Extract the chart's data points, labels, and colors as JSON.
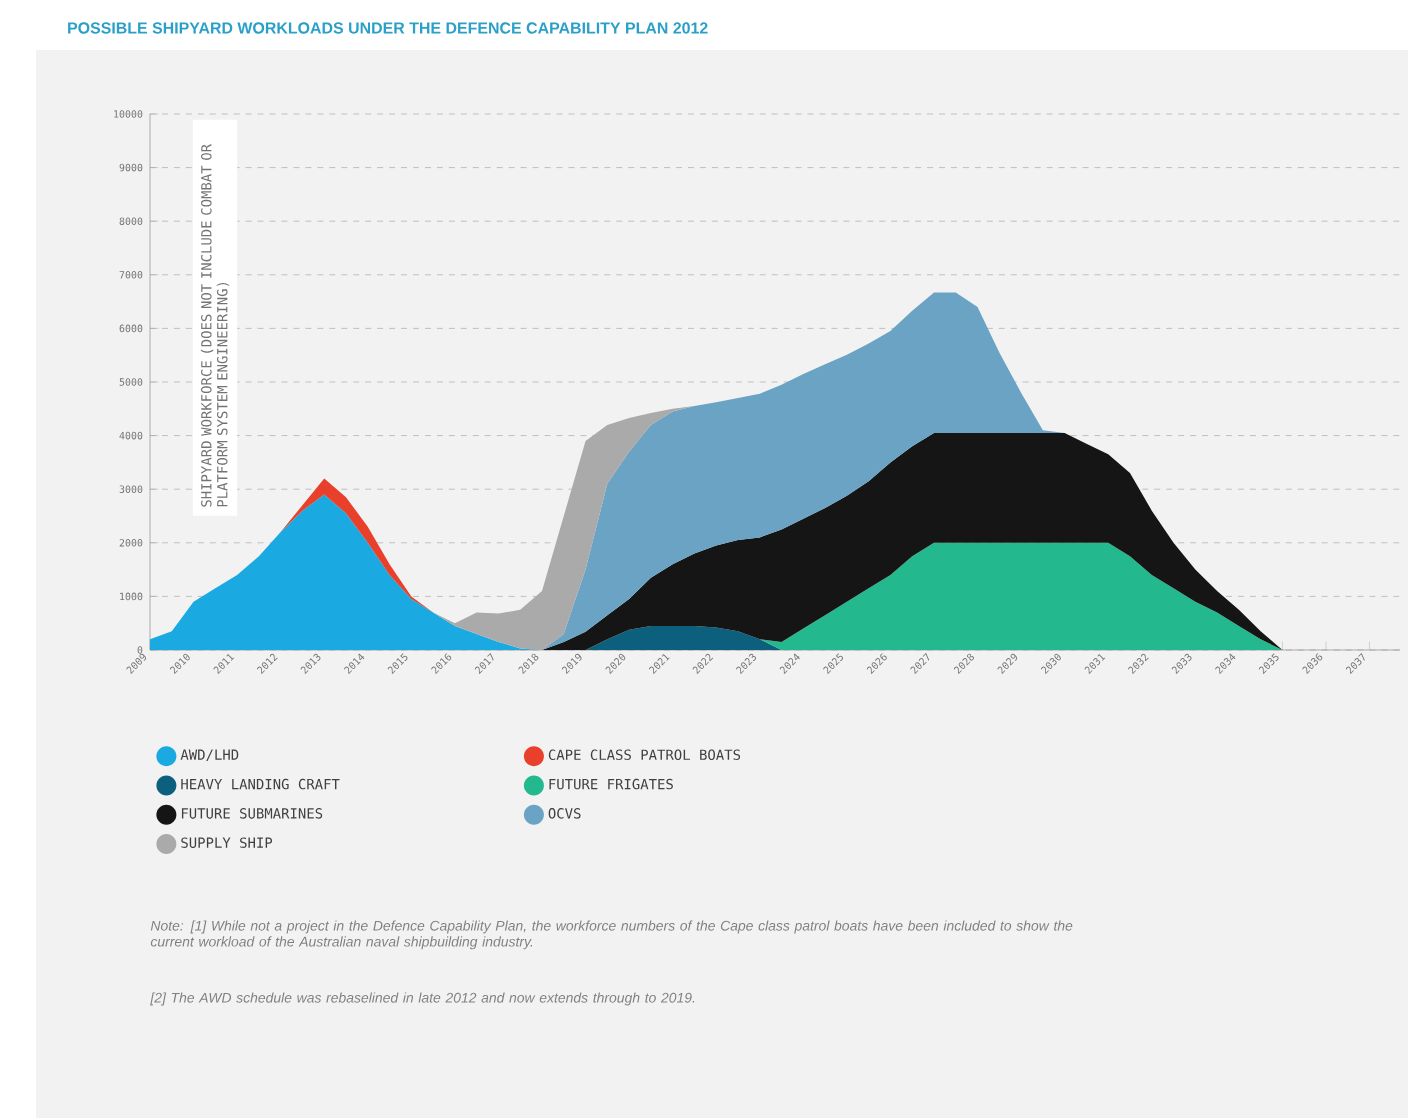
{
  "chart_data": {
    "type": "area",
    "stacked": true,
    "title": "POSSIBLE SHIPYARD WORKLOADS UNDER THE DEFENCE CAPABILITY PLAN 2012",
    "ylabel": "SHIPYARD WORKFORCE (DOES NOT INCLUDE COMBAT OR PLATFORM SYSTEM ENGINEERING)",
    "x": [
      2009,
      2009.5,
      2010,
      2010.5,
      2011,
      2011.5,
      2012,
      2012.5,
      2013,
      2013.5,
      2014,
      2014.5,
      2015,
      2015.5,
      2016,
      2016.5,
      2017,
      2017.5,
      2018,
      2018.5,
      2019,
      2019.5,
      2020,
      2020.5,
      2021,
      2021.5,
      2022,
      2022.5,
      2023,
      2023.5,
      2024,
      2024.5,
      2025,
      2025.5,
      2026,
      2026.5,
      2027,
      2027.5,
      2028,
      2028.5,
      2029,
      2029.5,
      2030,
      2030.5,
      2031,
      2031.5,
      2032,
      2032.5,
      2033,
      2033.5,
      2034,
      2034.5,
      2035
    ],
    "series": [
      {
        "name": "AWD/LHD",
        "color": "#1aa9e0",
        "values": [
          200,
          350,
          900,
          1150,
          1400,
          1750,
          2200,
          2600,
          2900,
          2550,
          2000,
          1400,
          950,
          700,
          450,
          300,
          150,
          30,
          0,
          null,
          null,
          null,
          null,
          null,
          null,
          null,
          null,
          null,
          null,
          null,
          null,
          null,
          null,
          null,
          null,
          null,
          null,
          null,
          null,
          null,
          null,
          null,
          null,
          null,
          null,
          null,
          null,
          null,
          null,
          null,
          null,
          null,
          null
        ]
      },
      {
        "name": "CAPE CLASS PATROL BOATS",
        "color": "#e8402a",
        "values": [
          null,
          null,
          null,
          null,
          null,
          null,
          0,
          100,
          300,
          300,
          300,
          200,
          50,
          0,
          null,
          null,
          null,
          null,
          null,
          null,
          null,
          null,
          null,
          null,
          null,
          null,
          null,
          null,
          null,
          null,
          null,
          null,
          null,
          null,
          null,
          null,
          null,
          null,
          null,
          null,
          null,
          null,
          null,
          null,
          null,
          null,
          null,
          null,
          null,
          null,
          null,
          null,
          null
        ]
      },
      {
        "name": "HEAVY LANDING CRAFT",
        "color": "#0d5f7e",
        "values": [
          null,
          null,
          null,
          null,
          null,
          null,
          null,
          null,
          null,
          null,
          null,
          null,
          null,
          null,
          null,
          null,
          null,
          null,
          null,
          null,
          0,
          200,
          380,
          450,
          450,
          450,
          420,
          350,
          200,
          0,
          null,
          null,
          null,
          null,
          null,
          null,
          null,
          null,
          null,
          null,
          null,
          null,
          null,
          null,
          null,
          null,
          null,
          null,
          null,
          null,
          null,
          null,
          null
        ]
      },
      {
        "name": "FUTURE FRIGATES",
        "color": "#23b88e",
        "values": [
          null,
          null,
          null,
          null,
          null,
          null,
          null,
          null,
          null,
          null,
          null,
          null,
          null,
          null,
          null,
          null,
          null,
          null,
          null,
          null,
          null,
          null,
          null,
          null,
          null,
          null,
          null,
          null,
          0,
          150,
          400,
          650,
          900,
          1150,
          1400,
          1750,
          2000,
          2000,
          2000,
          2000,
          2000,
          2000,
          2000,
          2000,
          2000,
          1750,
          1400,
          1150,
          900,
          700,
          450,
          200,
          0
        ]
      },
      {
        "name": "FUTURE SUBMARINES",
        "color": "#151515",
        "values": [
          null,
          null,
          null,
          null,
          null,
          null,
          null,
          null,
          null,
          null,
          null,
          null,
          null,
          null,
          null,
          null,
          null,
          null,
          0,
          150,
          340,
          450,
          570,
          900,
          1150,
          1350,
          1530,
          1700,
          1900,
          2100,
          2050,
          2000,
          1980,
          2000,
          2100,
          2050,
          2050,
          2050,
          2050,
          2050,
          2050,
          2050,
          2050,
          1850,
          1650,
          1550,
          1200,
          850,
          600,
          400,
          300,
          150,
          0
        ]
      },
      {
        "name": "OCVS",
        "color": "#6aa3c4",
        "values": [
          null,
          null,
          null,
          null,
          null,
          null,
          null,
          null,
          null,
          null,
          null,
          null,
          null,
          null,
          null,
          null,
          null,
          null,
          0,
          150,
          1160,
          2450,
          2750,
          2850,
          2850,
          2750,
          2670,
          2650,
          2680,
          2700,
          2700,
          2680,
          2630,
          2570,
          2450,
          2530,
          2620,
          2620,
          2350,
          1500,
          750,
          50,
          0,
          null,
          null,
          null,
          null,
          null,
          null,
          null,
          null,
          null,
          null
        ]
      },
      {
        "name": "SUPPLY SHIP",
        "color": "#aaaaaa",
        "values": [
          null,
          null,
          null,
          null,
          null,
          null,
          null,
          null,
          null,
          null,
          null,
          null,
          null,
          0,
          50,
          400,
          530,
          720,
          1100,
          2200,
          2400,
          1100,
          630,
          220,
          50,
          0,
          null,
          null,
          null,
          null,
          null,
          null,
          null,
          null,
          null,
          null,
          null,
          null,
          null,
          null,
          null,
          null,
          null,
          null,
          null,
          null,
          null,
          null,
          null,
          null,
          null,
          null,
          null
        ]
      }
    ],
    "xlim": [
      2009,
      2037.7
    ],
    "xticks": [
      2009,
      2010,
      2011,
      2012,
      2013,
      2014,
      2015,
      2016,
      2017,
      2018,
      2019,
      2020,
      2021,
      2022,
      2023,
      2024,
      2025,
      2026,
      2027,
      2028,
      2029,
      2030,
      2031,
      2032,
      2033,
      2034,
      2035,
      2036,
      2037
    ],
    "ylim": [
      0,
      10000
    ],
    "yticks": [
      0,
      1000,
      2000,
      3000,
      4000,
      5000,
      6000,
      7000,
      8000,
      9000,
      10000
    ],
    "grid": "y",
    "legend": "bottom",
    "annotations": [
      "Note: [1] While not a project in the Defence Capability Plan, the workforce numbers of the Cape class patrol boats have been included to show the current workload of the Australian naval shipbuilding industry.",
      "[2] The AWD schedule was rebaselined in late 2012 and now extends through to 2019."
    ]
  }
}
